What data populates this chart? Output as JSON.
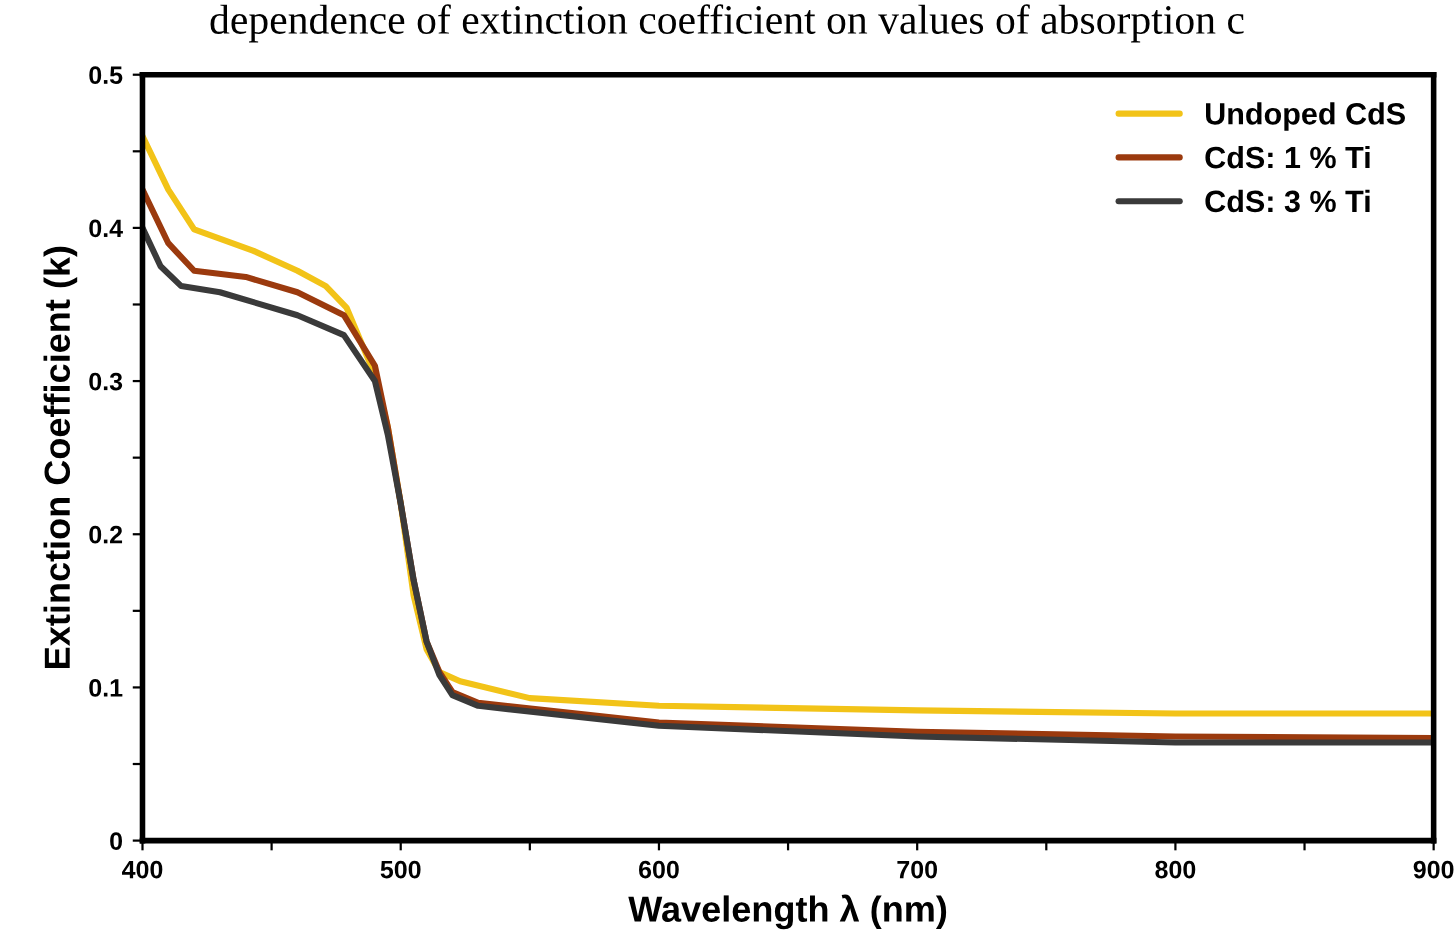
{
  "chart_data": {
    "type": "line",
    "title": "dependence of extinction coefficient on values of absorption c",
    "xlabel": "Wavelength λ (nm)",
    "ylabel": "Extinction Coefficient (k)",
    "xlim": [
      400,
      900
    ],
    "ylim": [
      0,
      0.5
    ],
    "xticks": [
      400,
      {
        "value": 450,
        "label": null
      },
      500,
      {
        "value": 550,
        "label": null
      },
      600,
      {
        "value": 650,
        "label": null
      },
      700,
      {
        "value": 750,
        "label": null
      },
      800,
      {
        "value": 850,
        "label": null
      },
      900
    ],
    "yticks": [
      0,
      {
        "value": 0.05,
        "label": null
      },
      0.1,
      {
        "value": 0.15,
        "label": null
      },
      0.2,
      {
        "value": 0.25,
        "label": null
      },
      0.3,
      {
        "value": 0.35,
        "label": null
      },
      0.4,
      {
        "value": 0.45,
        "label": null
      },
      0.5
    ],
    "grid": false,
    "legend": "top right",
    "marker": "none",
    "line_style": "solid",
    "series": [
      {
        "name": "Undoped CdS",
        "color": "#f2c318",
        "x": [
          400,
          410,
          420,
          443,
          460,
          471,
          479,
          490,
          495,
          500,
          505,
          510,
          515,
          523,
          550,
          600,
          700,
          800,
          900
        ],
        "values": [
          0.46,
          0.425,
          0.399,
          0.385,
          0.372,
          0.362,
          0.348,
          0.304,
          0.27,
          0.22,
          0.16,
          0.125,
          0.11,
          0.104,
          0.093,
          0.088,
          0.085,
          0.083,
          0.083
        ]
      },
      {
        "name": "CdS: 1 % Ti",
        "color": "#9b3a0e",
        "x": [
          400,
          410,
          420,
          440,
          460,
          478,
          490,
          495,
          500,
          505,
          510,
          515,
          520,
          530,
          600,
          700,
          800,
          900
        ],
        "values": [
          0.425,
          0.39,
          0.372,
          0.368,
          0.358,
          0.343,
          0.31,
          0.27,
          0.22,
          0.17,
          0.13,
          0.11,
          0.097,
          0.09,
          0.077,
          0.071,
          0.068,
          0.067
        ]
      },
      {
        "name": "CdS: 3 % Ti",
        "color": "#3a3a3a",
        "x": [
          400,
          407,
          415,
          430,
          460,
          478,
          490,
          495,
          500,
          505,
          510,
          515,
          520,
          530,
          600,
          700,
          800,
          900
        ],
        "values": [
          0.4,
          0.375,
          0.362,
          0.358,
          0.343,
          0.33,
          0.3,
          0.265,
          0.22,
          0.17,
          0.13,
          0.108,
          0.095,
          0.088,
          0.075,
          0.068,
          0.064,
          0.064
        ]
      }
    ]
  }
}
